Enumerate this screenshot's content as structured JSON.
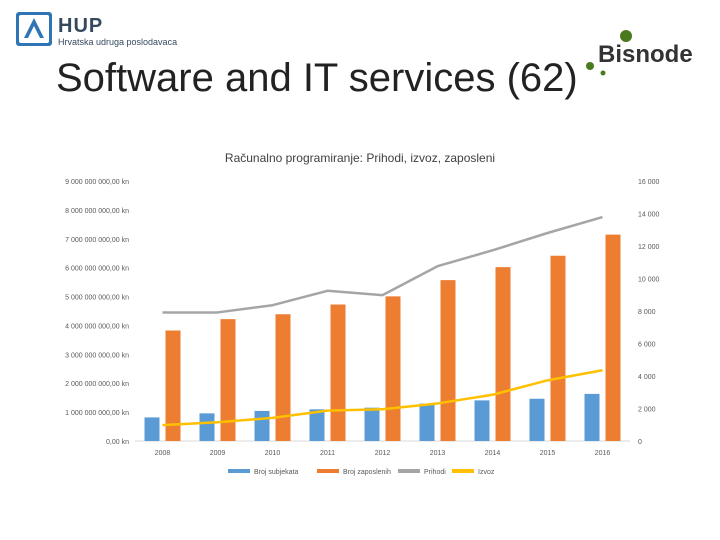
{
  "header": {
    "org_name": "HUP",
    "org_subtitle": "Hrvatska udruga poslodavaca",
    "partner_name": "Bisnode",
    "slide_title": "Software and IT services (62)"
  },
  "colors": {
    "subjects": "#5b9bd5",
    "employees": "#ed7d31",
    "revenue": "#a5a5a5",
    "export": "#ffc000",
    "bisnode_green": "#4a7a1e",
    "hup_blue": "#2f75b5"
  },
  "chart_data": {
    "type": "bar",
    "title": "Računalno programiranje: Prihodi, izvoz, zaposleni",
    "categories": [
      "2008",
      "2009",
      "2010",
      "2011",
      "2012",
      "2013",
      "2014",
      "2015",
      "2016"
    ],
    "left_axis": {
      "ylim": [
        0,
        9000000000
      ],
      "ticks": [
        "0,00 kn",
        "1 000 000 000,00 kn",
        "2 000 000 000,00 kn",
        "3 000 000 000,00 kn",
        "4 000 000 000,00 kn",
        "5 000 000 000,00 kn",
        "6 000 000 000,00 kn",
        "7 000 000 000,00 kn",
        "8 000 000 000,00 kn",
        "9 000 000 000,00 kn"
      ]
    },
    "right_axis": {
      "ylim": [
        0,
        16000
      ],
      "ticks": [
        "0",
        "2 000",
        "4 000",
        "6 000",
        "8 000",
        "10 000",
        "12 000",
        "14 000",
        "16 000"
      ]
    },
    "series": [
      {
        "name": "Broj subjekata",
        "type": "bar",
        "axis": "right",
        "values": [
          1450,
          1700,
          1850,
          1950,
          2050,
          2300,
          2500,
          2600,
          2900
        ]
      },
      {
        "name": "Broj zaposlenih",
        "type": "bar",
        "axis": "right",
        "values": [
          6800,
          7500,
          7800,
          8400,
          8900,
          9900,
          10700,
          11400,
          12700
        ]
      },
      {
        "name": "Prihodi",
        "type": "line",
        "axis": "left",
        "values": [
          4450000000,
          4450000000,
          4700000000,
          5200000000,
          5050000000,
          6050000000,
          6600000000,
          7200000000,
          7750000000
        ]
      },
      {
        "name": "Izvoz",
        "type": "line",
        "axis": "left",
        "values": [
          550000000,
          650000000,
          800000000,
          1050000000,
          1100000000,
          1300000000,
          1600000000,
          2100000000,
          2450000000
        ]
      }
    ]
  }
}
